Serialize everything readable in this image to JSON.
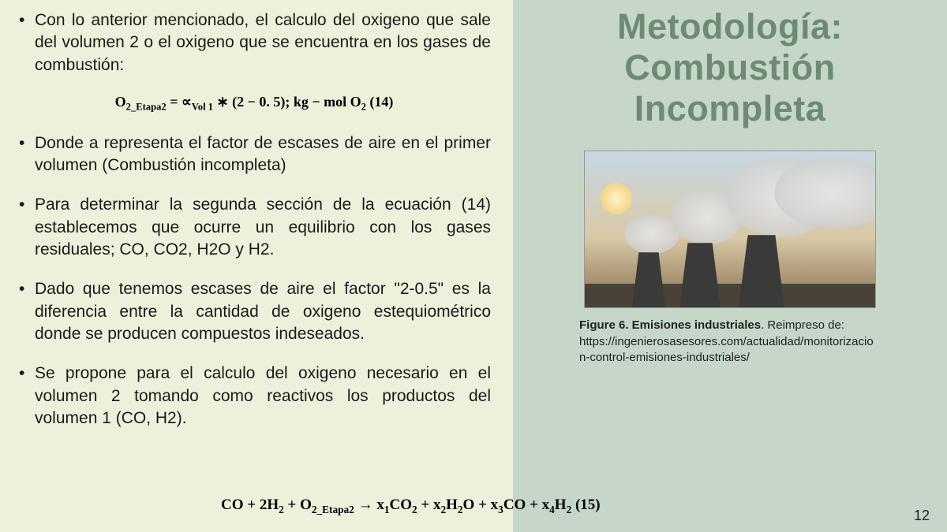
{
  "left": {
    "bullets": [
      "Con lo anterior mencionado, el calculo del oxigeno que sale del volumen 2 o el oxigeno que se encuentra en los gases de combustión:",
      "Donde a representa el factor de escases de aire en el primer volumen (Combustión incompleta)",
      "Para determinar la segunda sección de la ecuación (14) establecemos que ocurre un equilibrio con los gases residuales; CO, CO2, H2O y H2.",
      "Dado que tenemos escases de aire el factor \"2-0.5\" es la diferencia entre la cantidad de oxigeno estequiométrico donde se producen compuestos indeseados.",
      "Se propone para el calculo del oxigeno necesario en el volumen 2 tomando como reactivos los productos del volumen 1 (CO, H2)."
    ],
    "equation14_html": "O<span class=\"subscript\">2_Etapa2</span> = ∝<span class=\"subscript\">Vol 1</span> ∗ (2 − 0. 5); kg − mol O<span class=\"subscript\">2</span>  (14)",
    "equation15_html": "CO +  2H<span class=\"subscript\">2</span> +  O<span class=\"subscript\">2_Etapa2</span>  →  x<span class=\"subscript\">1</span>CO<span class=\"subscript\">2</span> +  x<span class=\"subscript\">2</span>H<span class=\"subscript\">2</span>O +  x<span class=\"subscript\">3</span>CO +  x<span class=\"subscript\">4</span>H<span class=\"subscript\">2</span>  (15)"
  },
  "right": {
    "title_line1": "Metodología:",
    "title_line2": "Combustión",
    "title_line3": "Incompleta",
    "caption_bold": "Figure 6. Emisiones industriales",
    "caption_rest": ". Reimpreso de: https://ingenierosasesores.com/actualidad/monitorizacion-control-emisiones-industriales/",
    "page_number": "12"
  },
  "colors": {
    "left_bg": "#eef0dc",
    "right_bg": "#c6d6c9",
    "title_color": "#6d8b74",
    "text_color": "#1a1a1a"
  }
}
